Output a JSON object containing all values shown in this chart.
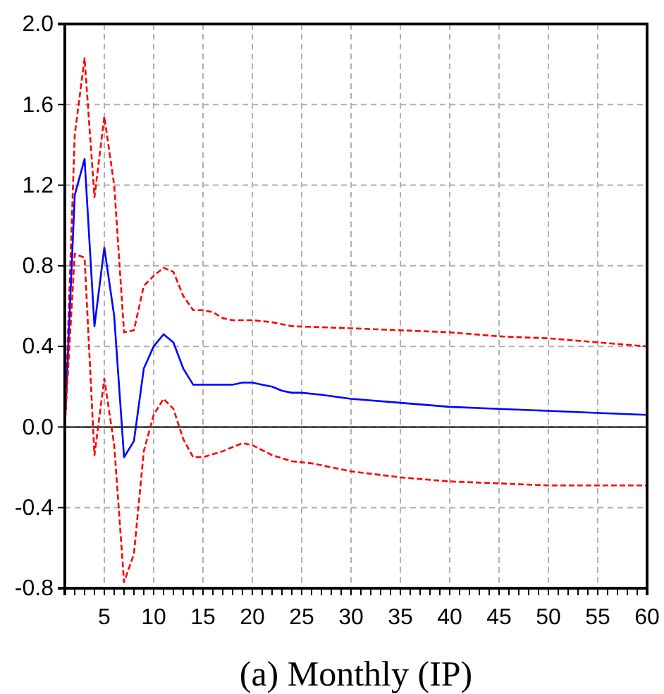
{
  "chart_data": {
    "type": "line",
    "title": "(a) Monthly (IP)",
    "xlim": [
      1,
      60
    ],
    "ylim": [
      -0.8,
      2.0
    ],
    "xticks": [
      {
        "value": 1,
        "label": null
      },
      {
        "value": 2,
        "label": null
      },
      {
        "value": 3,
        "label": null
      },
      {
        "value": 4,
        "label": null
      },
      5,
      {
        "value": 6,
        "label": null
      },
      {
        "value": 7,
        "label": null
      },
      {
        "value": 8,
        "label": null
      },
      {
        "value": 9,
        "label": null
      },
      10,
      {
        "value": 11,
        "label": null
      },
      {
        "value": 12,
        "label": null
      },
      {
        "value": 13,
        "label": null
      },
      {
        "value": 14,
        "label": null
      },
      15,
      {
        "value": 16,
        "label": null
      },
      {
        "value": 17,
        "label": null
      },
      {
        "value": 18,
        "label": null
      },
      {
        "value": 19,
        "label": null
      },
      20,
      {
        "value": 21,
        "label": null
      },
      {
        "value": 22,
        "label": null
      },
      {
        "value": 23,
        "label": null
      },
      {
        "value": 24,
        "label": null
      },
      25,
      {
        "value": 26,
        "label": null
      },
      {
        "value": 27,
        "label": null
      },
      {
        "value": 28,
        "label": null
      },
      {
        "value": 29,
        "label": null
      },
      30,
      {
        "value": 31,
        "label": null
      },
      {
        "value": 32,
        "label": null
      },
      {
        "value": 33,
        "label": null
      },
      {
        "value": 34,
        "label": null
      },
      35,
      {
        "value": 36,
        "label": null
      },
      {
        "value": 37,
        "label": null
      },
      {
        "value": 38,
        "label": null
      },
      {
        "value": 39,
        "label": null
      },
      40,
      {
        "value": 41,
        "label": null
      },
      {
        "value": 42,
        "label": null
      },
      {
        "value": 43,
        "label": null
      },
      {
        "value": 44,
        "label": null
      },
      45,
      {
        "value": 46,
        "label": null
      },
      {
        "value": 47,
        "label": null
      },
      {
        "value": 48,
        "label": null
      },
      {
        "value": 49,
        "label": null
      },
      50,
      {
        "value": 51,
        "label": null
      },
      {
        "value": 52,
        "label": null
      },
      {
        "value": 53,
        "label": null
      },
      {
        "value": 54,
        "label": null
      },
      55,
      {
        "value": 56,
        "label": null
      },
      {
        "value": 57,
        "label": null
      },
      {
        "value": 58,
        "label": null
      },
      {
        "value": 59,
        "label": null
      },
      60
    ],
    "yticks": [
      {
        "value": -0.8,
        "label": "-0.8"
      },
      {
        "value": -0.4,
        "label": "-0.4"
      },
      {
        "value": 0,
        "label": "0.0"
      },
      {
        "value": 0.4,
        "label": "0.4"
      },
      {
        "value": 0.8,
        "label": "0.8"
      },
      {
        "value": 1.2,
        "label": "1.2"
      },
      {
        "value": 1.6,
        "label": "1.6"
      },
      {
        "value": 2.0,
        "label": "2.0"
      }
    ],
    "grid": true,
    "ref_lines": [
      {
        "axis": "y",
        "value": 0,
        "color": "#000000"
      }
    ],
    "series": [
      {
        "color": "#ff0000",
        "line_style": "dashed",
        "x": [
          1,
          2,
          3,
          4,
          5,
          6,
          7,
          8,
          9,
          10,
          11,
          12,
          13,
          14,
          15,
          16,
          17,
          18,
          20,
          22,
          24,
          30,
          35,
          40,
          45,
          50,
          55,
          60
        ],
        "values": [
          0,
          1.45,
          1.83,
          1.14,
          1.54,
          1.2,
          0.47,
          0.48,
          0.7,
          0.75,
          0.79,
          0.77,
          0.65,
          0.58,
          0.58,
          0.57,
          0.54,
          0.53,
          0.53,
          0.52,
          0.5,
          0.49,
          0.48,
          0.47,
          0.45,
          0.44,
          0.42,
          0.4
        ]
      },
      {
        "color": "#0000ff",
        "line_style": "solid",
        "x": [
          1,
          2,
          3,
          4,
          5,
          6,
          7,
          8,
          9,
          10,
          11,
          12,
          13,
          14,
          15,
          16,
          17,
          18,
          19,
          20,
          21,
          22,
          23,
          24,
          25,
          27,
          30,
          35,
          40,
          45,
          50,
          55,
          60
        ],
        "values": [
          0,
          1.15,
          1.33,
          0.5,
          0.89,
          0.55,
          -0.15,
          -0.07,
          0.29,
          0.4,
          0.46,
          0.42,
          0.29,
          0.21,
          0.21,
          0.21,
          0.21,
          0.21,
          0.22,
          0.22,
          0.21,
          0.2,
          0.18,
          0.17,
          0.17,
          0.16,
          0.14,
          0.12,
          0.1,
          0.09,
          0.08,
          0.07,
          0.06
        ]
      },
      {
        "color": "#ff0000",
        "line_style": "dashed",
        "x": [
          1,
          2,
          3,
          4,
          5,
          6,
          7,
          8,
          9,
          10,
          11,
          12,
          13,
          14,
          15,
          17,
          19,
          20,
          22,
          24,
          26,
          28,
          30,
          35,
          40,
          45,
          50,
          55,
          60
        ],
        "values": [
          0,
          0.86,
          0.84,
          -0.14,
          0.24,
          -0.09,
          -0.77,
          -0.63,
          -0.12,
          0.06,
          0.14,
          0.09,
          -0.06,
          -0.15,
          -0.15,
          -0.12,
          -0.08,
          -0.09,
          -0.14,
          -0.17,
          -0.18,
          -0.2,
          -0.22,
          -0.25,
          -0.27,
          -0.28,
          -0.29,
          -0.29,
          -0.29
        ]
      }
    ]
  }
}
